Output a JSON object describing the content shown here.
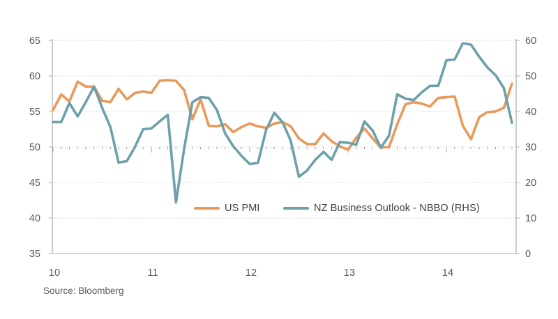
{
  "chart_data": {
    "type": "line",
    "title": "",
    "source": "Source: Bloomberg",
    "grid": true,
    "legend_position": "inside-bottom",
    "x_start": "2010-01",
    "x_interval": "month",
    "n_points": 57,
    "x_tick_labels": [
      "10",
      "11",
      "12",
      "13",
      "14"
    ],
    "left_axis": {
      "min": 35,
      "max": 65,
      "ticks": [
        65,
        60,
        55,
        50,
        45,
        40,
        35
      ]
    },
    "right_axis": {
      "min": 0,
      "max": 60,
      "ticks": [
        60,
        50,
        40,
        30,
        20,
        10,
        0
      ]
    },
    "category_axis_crosses_at_left_value": 50,
    "series": [
      {
        "name": "US PMI",
        "axis": "left",
        "color": "#E89A5B",
        "values": [
          55.2,
          57.4,
          56.4,
          59.2,
          58.5,
          58.5,
          56.5,
          56.3,
          58.2,
          56.7,
          57.6,
          57.8,
          57.6,
          59.3,
          59.4,
          59.3,
          58.0,
          53.9,
          56.7,
          53.0,
          52.9,
          53.2,
          52.1,
          52.8,
          53.3,
          52.9,
          52.7,
          53.3,
          53.5,
          52.9,
          51.2,
          50.4,
          50.4,
          51.9,
          50.8,
          50.1,
          49.6,
          51.3,
          52.6,
          51.2,
          49.9,
          50.0,
          53.2,
          56.0,
          56.3,
          56.1,
          55.7,
          56.9,
          57.0,
          57.1,
          53.0,
          51.1,
          54.2,
          54.9,
          55.0,
          55.5,
          58.9
        ]
      },
      {
        "name": "NZ Business Outlook - NBBO (RHS)",
        "axis": "right",
        "color": "#6DA0AA",
        "values": [
          37.0,
          37.0,
          42.4,
          38.6,
          42.6,
          47.0,
          41.0,
          35.6,
          25.6,
          26.0,
          30.0,
          35.0,
          35.2,
          37.2,
          39.0,
          14.4,
          29.5,
          42.6,
          44.0,
          43.8,
          40.4,
          33.8,
          30.2,
          27.5,
          25.2,
          25.5,
          34.8,
          39.6,
          37.0,
          31.8,
          21.6,
          23.4,
          26.4,
          28.6,
          26.4,
          31.4,
          31.2,
          30.6,
          37.2,
          34.6,
          29.8,
          33.2,
          44.8,
          43.6,
          43.2,
          45.4,
          47.2,
          47.2,
          54.4,
          54.6,
          59.2,
          58.8,
          55.4,
          52.4,
          50.2,
          46.6,
          36.8
        ]
      }
    ]
  }
}
